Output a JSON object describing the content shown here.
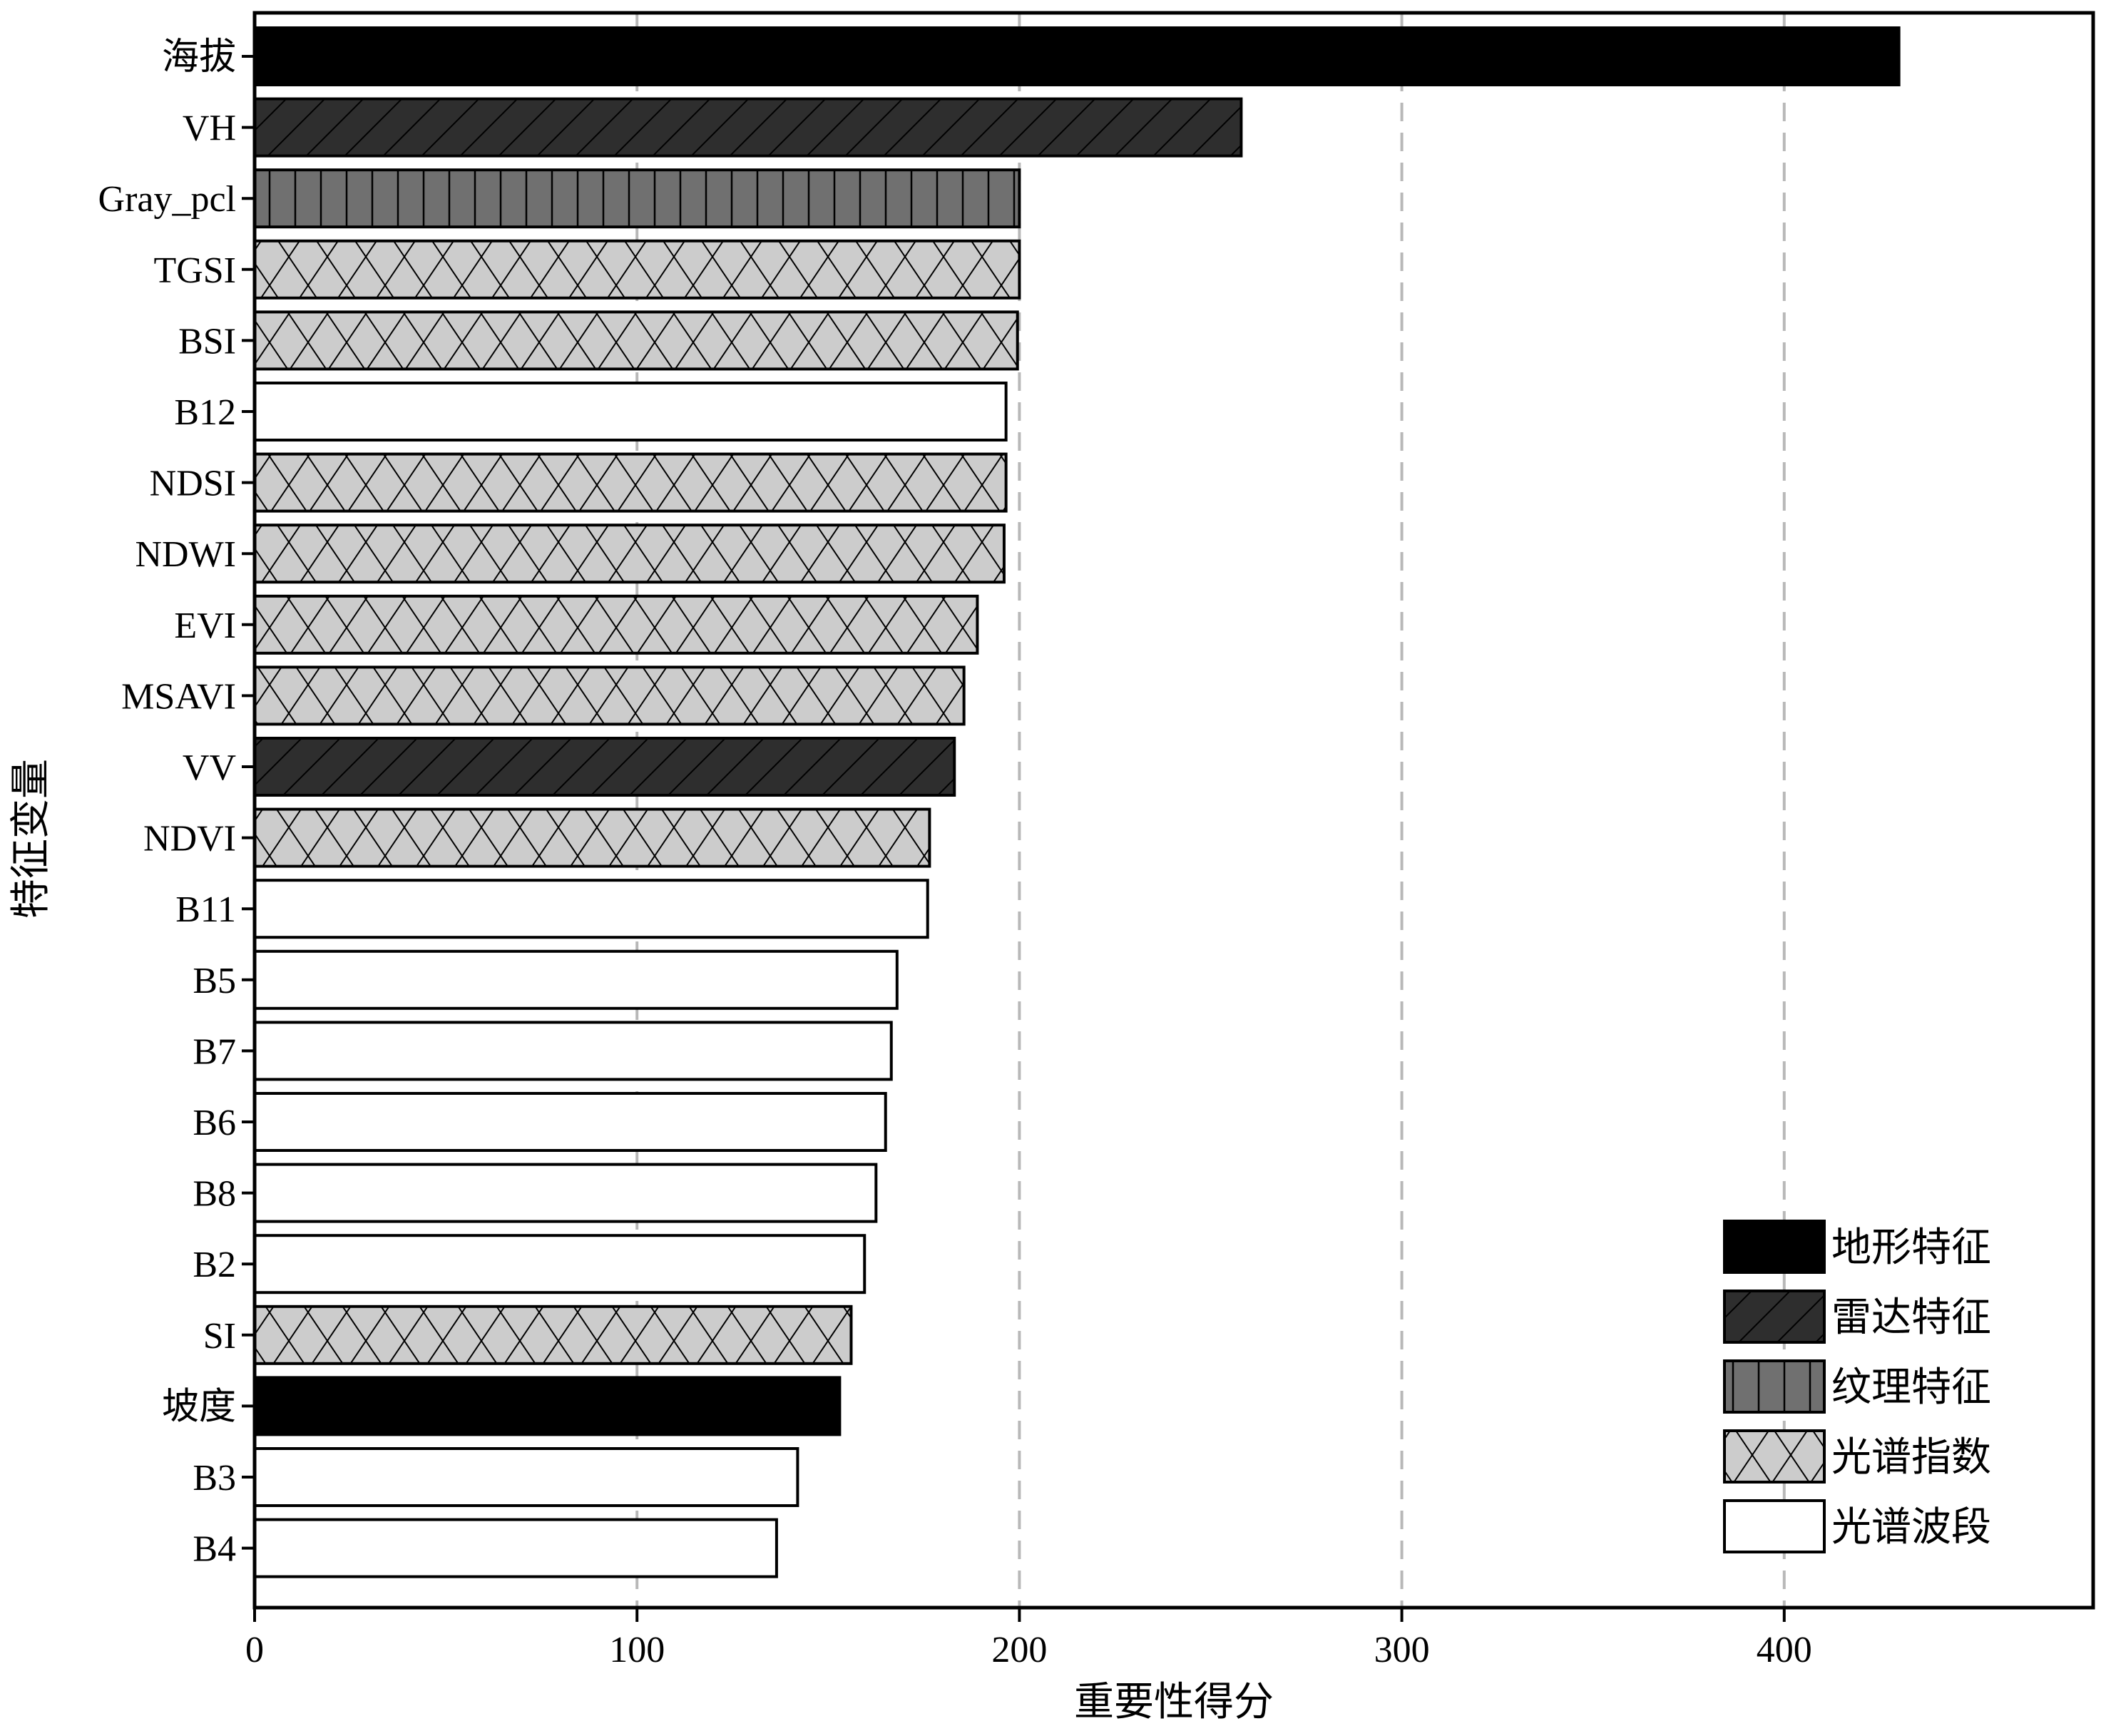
{
  "chart_data": {
    "type": "bar",
    "orientation": "horizontal",
    "title": "",
    "xlabel": "重要性得分",
    "ylabel": "特征变量",
    "xlim": [
      0,
      480
    ],
    "xticks": [
      0,
      100,
      200,
      300,
      400
    ],
    "grid": "vertical dashed lines at x ticks",
    "legend_position": "bottom-right",
    "categories": [
      "海拔",
      "VH",
      "Gray_pcl",
      "TGSI",
      "BSI",
      "B12",
      "NDSI",
      "NDWI",
      "EVI",
      "MSAVI",
      "VV",
      "NDVI",
      "B11",
      "B5",
      "B7",
      "B6",
      "B8",
      "B2",
      "SI",
      "坡度",
      "B3",
      "B4"
    ],
    "values": [
      430,
      258,
      200,
      200,
      199.5,
      196.5,
      196.5,
      196,
      189,
      185.5,
      183,
      176.5,
      176,
      168,
      166.5,
      165,
      162.5,
      159.5,
      156,
      153,
      142,
      136.5
    ],
    "groups": [
      "地形特征",
      "雷达特征",
      "纹理特征",
      "光谱指数",
      "光谱指数",
      "光谱波段",
      "光谱指数",
      "光谱指数",
      "光谱指数",
      "光谱指数",
      "雷达特征",
      "光谱指数",
      "光谱波段",
      "光谱波段",
      "光谱波段",
      "光谱波段",
      "光谱波段",
      "光谱波段",
      "光谱指数",
      "地形特征",
      "光谱波段",
      "光谱波段"
    ],
    "legend": [
      {
        "name": "地形特征",
        "pattern": "solid",
        "color": "#000000"
      },
      {
        "name": "雷达特征",
        "pattern": "diagonal",
        "color": "#2e2e2e"
      },
      {
        "name": "纹理特征",
        "pattern": "vertical",
        "color": "#707070"
      },
      {
        "name": "光谱指数",
        "pattern": "cross",
        "color": "#cccccc"
      },
      {
        "name": "光谱波段",
        "pattern": "none",
        "color": "#ffffff"
      }
    ]
  }
}
